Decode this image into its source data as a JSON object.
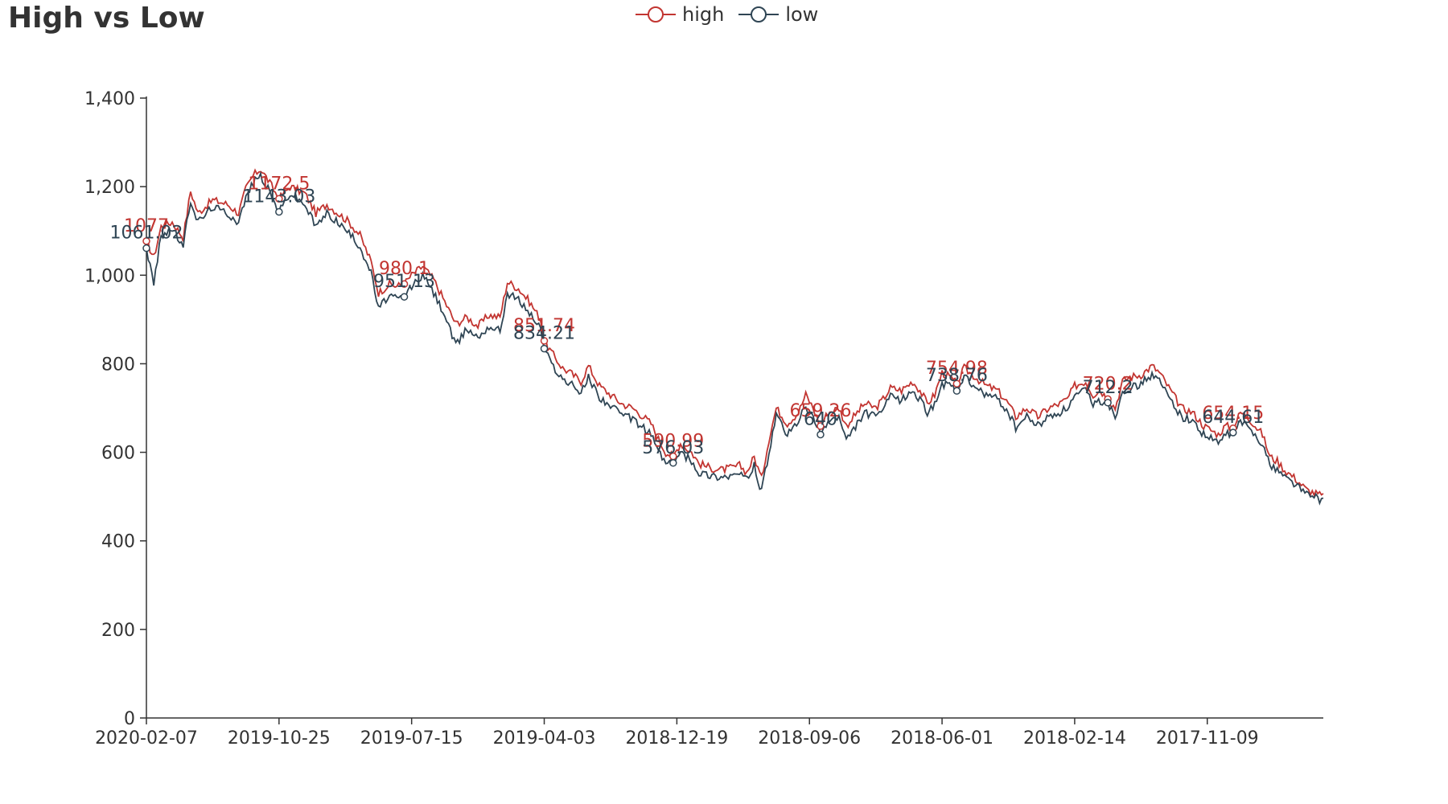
{
  "chart_data": {
    "type": "line",
    "title": "High vs Low",
    "xlabel": "",
    "ylabel": "",
    "ylim": [
      0,
      1400
    ],
    "yticks": [
      0,
      200,
      400,
      600,
      800,
      1000,
      1200,
      1400
    ],
    "ytick_labels": [
      "0",
      "200",
      "400",
      "600",
      "800",
      "1,000",
      "1,200",
      "1,400"
    ],
    "x_tick_labels": [
      "2020-02-07",
      "2019-10-25",
      "2019-07-15",
      "2019-04-03",
      "2018-12-19",
      "2018-09-06",
      "2018-06-01",
      "2018-02-14",
      "2017-11-09"
    ],
    "x_tick_interval": 72,
    "n_points": 640,
    "grid": false,
    "legend_position": "top-center",
    "colors": {
      "high": "#c23531",
      "low": "#2f4554"
    },
    "series": [
      {
        "name": "high",
        "color": "#c23531",
        "key_points": [
          [
            0,
            1077
          ],
          [
            4,
            1040
          ],
          [
            8,
            1110
          ],
          [
            14,
            1120
          ],
          [
            20,
            1085
          ],
          [
            24,
            1190
          ],
          [
            28,
            1140
          ],
          [
            36,
            1170
          ],
          [
            44,
            1160
          ],
          [
            50,
            1140
          ],
          [
            54,
            1195
          ],
          [
            58,
            1225
          ],
          [
            62,
            1240
          ],
          [
            66,
            1215
          ],
          [
            72,
            1172.5
          ],
          [
            78,
            1200
          ],
          [
            86,
            1185
          ],
          [
            92,
            1140
          ],
          [
            98,
            1160
          ],
          [
            104,
            1140
          ],
          [
            110,
            1120
          ],
          [
            116,
            1090
          ],
          [
            122,
            1030
          ],
          [
            126,
            960
          ],
          [
            132,
            980
          ],
          [
            136,
            975
          ],
          [
            140,
            980.1
          ],
          [
            144,
            1000
          ],
          [
            150,
            1020
          ],
          [
            156,
            990
          ],
          [
            162,
            940
          ],
          [
            168,
            890
          ],
          [
            174,
            905
          ],
          [
            180,
            885
          ],
          [
            186,
            910
          ],
          [
            192,
            905
          ],
          [
            196,
            985
          ],
          [
            202,
            970
          ],
          [
            208,
            940
          ],
          [
            214,
            900
          ],
          [
            216,
            851.74
          ],
          [
            220,
            825
          ],
          [
            226,
            790
          ],
          [
            230,
            780
          ],
          [
            236,
            760
          ],
          [
            240,
            795
          ],
          [
            246,
            750
          ],
          [
            252,
            730
          ],
          [
            258,
            710
          ],
          [
            264,
            700
          ],
          [
            270,
            680
          ],
          [
            274,
            665
          ],
          [
            278,
            630
          ],
          [
            282,
            600
          ],
          [
            286,
            590.99
          ],
          [
            290,
            620
          ],
          [
            296,
            600
          ],
          [
            300,
            575
          ],
          [
            306,
            565
          ],
          [
            312,
            560
          ],
          [
            318,
            565
          ],
          [
            322,
            570
          ],
          [
            326,
            555
          ],
          [
            330,
            590
          ],
          [
            334,
            540
          ],
          [
            338,
            630
          ],
          [
            342,
            700
          ],
          [
            348,
            665
          ],
          [
            354,
            690
          ],
          [
            358,
            730
          ],
          [
            362,
            700
          ],
          [
            366,
            659.26
          ],
          [
            370,
            690
          ],
          [
            376,
            700
          ],
          [
            380,
            660
          ],
          [
            386,
            690
          ],
          [
            390,
            710
          ],
          [
            396,
            700
          ],
          [
            400,
            720
          ],
          [
            404,
            745
          ],
          [
            410,
            740
          ],
          [
            416,
            760
          ],
          [
            420,
            740
          ],
          [
            424,
            710
          ],
          [
            428,
            730
          ],
          [
            432,
            780
          ],
          [
            436,
            770
          ],
          [
            440,
            754.98
          ],
          [
            444,
            790
          ],
          [
            450,
            770
          ],
          [
            456,
            750
          ],
          [
            462,
            740
          ],
          [
            468,
            710
          ],
          [
            472,
            680
          ],
          [
            478,
            700
          ],
          [
            484,
            680
          ],
          [
            490,
            700
          ],
          [
            496,
            710
          ],
          [
            500,
            720
          ],
          [
            504,
            750
          ],
          [
            510,
            760
          ],
          [
            514,
            730
          ],
          [
            518,
            740
          ],
          [
            522,
            720.2
          ],
          [
            526,
            700
          ],
          [
            530,
            760
          ],
          [
            534,
            770
          ],
          [
            540,
            775
          ],
          [
            546,
            795
          ],
          [
            550,
            780
          ],
          [
            556,
            740
          ],
          [
            562,
            700
          ],
          [
            568,
            690
          ],
          [
            574,
            660
          ],
          [
            578,
            650
          ],
          [
            582,
            640
          ],
          [
            586,
            660
          ],
          [
            590,
            654.15
          ],
          [
            594,
            690
          ],
          [
            598,
            680
          ],
          [
            602,
            660
          ],
          [
            606,
            640
          ],
          [
            610,
            590
          ],
          [
            614,
            580
          ],
          [
            618,
            560
          ],
          [
            624,
            540
          ],
          [
            630,
            515
          ],
          [
            636,
            505
          ],
          [
            642,
            495
          ],
          [
            648,
            500
          ],
          [
            654,
            500
          ],
          [
            660,
            495
          ],
          [
            666,
            500
          ],
          [
            672,
            495
          ],
          [
            678,
            495
          ]
        ],
        "annotations": [
          {
            "x": 0,
            "y": 1077,
            "label": "1077"
          },
          {
            "x": 72,
            "y": 1172.5,
            "label": "1172.5"
          },
          {
            "x": 140,
            "y": 980.1,
            "label": "980.1"
          },
          {
            "x": 216,
            "y": 851.74,
            "label": "851.74"
          },
          {
            "x": 286,
            "y": 590.99,
            "label": "590.99"
          },
          {
            "x": 366,
            "y": 659.26,
            "label": "659.26"
          },
          {
            "x": 440,
            "y": 754.98,
            "label": "754.98"
          },
          {
            "x": 522,
            "y": 720.2,
            "label": "720.2"
          },
          {
            "x": 590,
            "y": 654.15,
            "label": "654.15"
          }
        ]
      },
      {
        "name": "low",
        "color": "#2f4554",
        "key_points": [
          [
            0,
            1061.02
          ],
          [
            4,
            980
          ],
          [
            8,
            1090
          ],
          [
            14,
            1105
          ],
          [
            20,
            1065
          ],
          [
            24,
            1170
          ],
          [
            28,
            1120
          ],
          [
            36,
            1155
          ],
          [
            44,
            1140
          ],
          [
            50,
            1120
          ],
          [
            54,
            1175
          ],
          [
            58,
            1210
          ],
          [
            62,
            1225
          ],
          [
            66,
            1195
          ],
          [
            72,
            1143.03
          ],
          [
            78,
            1185
          ],
          [
            86,
            1160
          ],
          [
            92,
            1110
          ],
          [
            98,
            1140
          ],
          [
            104,
            1120
          ],
          [
            110,
            1095
          ],
          [
            116,
            1065
          ],
          [
            122,
            1005
          ],
          [
            126,
            925
          ],
          [
            132,
            955
          ],
          [
            136,
            945
          ],
          [
            140,
            951.13
          ],
          [
            144,
            975
          ],
          [
            150,
            1000
          ],
          [
            156,
            960
          ],
          [
            162,
            910
          ],
          [
            168,
            840
          ],
          [
            174,
            880
          ],
          [
            180,
            860
          ],
          [
            186,
            885
          ],
          [
            192,
            875
          ],
          [
            196,
            960
          ],
          [
            202,
            945
          ],
          [
            208,
            915
          ],
          [
            214,
            880
          ],
          [
            216,
            834.21
          ],
          [
            220,
            800
          ],
          [
            226,
            765
          ],
          [
            230,
            755
          ],
          [
            236,
            735
          ],
          [
            240,
            770
          ],
          [
            246,
            725
          ],
          [
            252,
            705
          ],
          [
            258,
            685
          ],
          [
            264,
            675
          ],
          [
            270,
            655
          ],
          [
            274,
            640
          ],
          [
            278,
            605
          ],
          [
            282,
            575
          ],
          [
            286,
            576.03
          ],
          [
            290,
            600
          ],
          [
            296,
            580
          ],
          [
            300,
            555
          ],
          [
            306,
            548
          ],
          [
            312,
            545
          ],
          [
            318,
            548
          ],
          [
            322,
            552
          ],
          [
            326,
            538
          ],
          [
            330,
            570
          ],
          [
            334,
            510
          ],
          [
            338,
            600
          ],
          [
            342,
            680
          ],
          [
            348,
            640
          ],
          [
            354,
            670
          ],
          [
            358,
            705
          ],
          [
            362,
            675
          ],
          [
            366,
            640
          ],
          [
            370,
            670
          ],
          [
            376,
            680
          ],
          [
            380,
            625
          ],
          [
            386,
            665
          ],
          [
            390,
            690
          ],
          [
            396,
            680
          ],
          [
            400,
            700
          ],
          [
            404,
            725
          ],
          [
            410,
            718
          ],
          [
            416,
            740
          ],
          [
            420,
            718
          ],
          [
            424,
            690
          ],
          [
            428,
            710
          ],
          [
            432,
            755
          ],
          [
            436,
            750
          ],
          [
            440,
            738.76
          ],
          [
            444,
            770
          ],
          [
            450,
            745
          ],
          [
            456,
            730
          ],
          [
            462,
            720
          ],
          [
            468,
            690
          ],
          [
            472,
            655
          ],
          [
            478,
            680
          ],
          [
            484,
            660
          ],
          [
            490,
            680
          ],
          [
            496,
            690
          ],
          [
            500,
            700
          ],
          [
            504,
            725
          ],
          [
            510,
            740
          ],
          [
            514,
            710
          ],
          [
            518,
            715
          ],
          [
            522,
            712.2
          ],
          [
            526,
            680
          ],
          [
            530,
            740
          ],
          [
            534,
            745
          ],
          [
            540,
            755
          ],
          [
            546,
            775
          ],
          [
            550,
            760
          ],
          [
            556,
            720
          ],
          [
            562,
            680
          ],
          [
            568,
            670
          ],
          [
            574,
            640
          ],
          [
            578,
            630
          ],
          [
            582,
            620
          ],
          [
            586,
            640
          ],
          [
            590,
            644.61
          ],
          [
            594,
            670
          ],
          [
            598,
            655
          ],
          [
            602,
            640
          ],
          [
            606,
            620
          ],
          [
            610,
            570
          ],
          [
            614,
            562
          ],
          [
            618,
            545
          ],
          [
            624,
            528
          ],
          [
            630,
            505
          ],
          [
            636,
            495
          ],
          [
            642,
            485
          ],
          [
            648,
            490
          ],
          [
            654,
            490
          ],
          [
            660,
            485
          ],
          [
            666,
            490
          ],
          [
            672,
            485
          ],
          [
            678,
            480
          ]
        ],
        "annotations": [
          {
            "x": 0,
            "y": 1061.02,
            "label": "1061.02"
          },
          {
            "x": 72,
            "y": 1143.03,
            "label": "1143.03"
          },
          {
            "x": 140,
            "y": 951.13,
            "label": "951.13"
          },
          {
            "x": 216,
            "y": 834.21,
            "label": "834.21"
          },
          {
            "x": 286,
            "y": 576.03,
            "label": "576.03"
          },
          {
            "x": 366,
            "y": 640,
            "label": "640"
          },
          {
            "x": 440,
            "y": 738.76,
            "label": "738.76"
          },
          {
            "x": 522,
            "y": 712.2,
            "label": "712.2"
          },
          {
            "x": 590,
            "y": 644.61,
            "label": "644.61"
          }
        ]
      }
    ]
  }
}
